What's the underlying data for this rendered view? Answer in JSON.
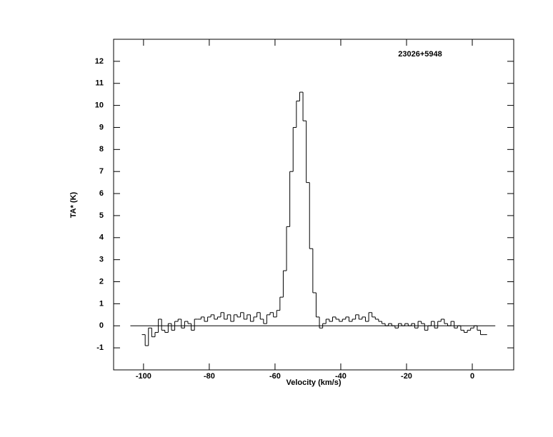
{
  "chart_data": {
    "type": "step",
    "title": "23026+5948",
    "x_label": "Velocity (km/s)",
    "y_label": "TA* (K)",
    "xlim": [
      -109.1,
      12.6
    ],
    "ylim": [
      -2,
      13
    ],
    "xticks": [
      -100,
      -80,
      -60,
      -40,
      -20,
      0
    ],
    "yticks": [
      -1,
      0,
      1,
      2,
      3,
      4,
      5,
      6,
      7,
      8,
      9,
      10,
      11,
      12
    ],
    "baseline": {
      "y": 0,
      "x": [
        -104,
        7
      ]
    },
    "color": "#000000",
    "x": [
      -100,
      -99,
      -98,
      -97,
      -96,
      -95,
      -94,
      -93,
      -92,
      -91,
      -90,
      -89,
      -88,
      -87,
      -86,
      -85,
      -84,
      -83,
      -82,
      -81,
      -80,
      -79,
      -78,
      -77,
      -76,
      -75,
      -74,
      -73,
      -72,
      -71,
      -70,
      -69,
      -68,
      -67,
      -66,
      -65,
      -64,
      -63,
      -62,
      -61,
      -60,
      -59,
      -58,
      -57,
      -56,
      -55,
      -54,
      -53,
      -52,
      -51,
      -50,
      -49,
      -48,
      -47,
      -46,
      -45,
      -44,
      -43,
      -42,
      -41,
      -40,
      -39,
      -38,
      -37,
      -36,
      -35,
      -34,
      -33,
      -32,
      -31,
      -30,
      -29,
      -28,
      -27,
      -26,
      -25,
      -24,
      -23,
      -22,
      -21,
      -20,
      -19,
      -18,
      -17,
      -16,
      -15,
      -14,
      -13,
      -12,
      -11,
      -10,
      -9,
      -8,
      -7,
      -6,
      -5,
      -4,
      -3,
      -2,
      -1,
      0,
      1,
      2,
      3,
      4
    ],
    "values": [
      -0.4,
      -0.9,
      -0.1,
      -0.5,
      -0.3,
      0.3,
      -0.2,
      -0.3,
      0.1,
      -0.2,
      0.2,
      0.3,
      -0.1,
      0.2,
      0.1,
      -0.2,
      0.3,
      0.3,
      0.4,
      0.2,
      0.4,
      0.5,
      0.3,
      0.4,
      0.6,
      0.3,
      0.5,
      0.2,
      0.5,
      0.4,
      0.6,
      0.3,
      0.5,
      0.2,
      0.4,
      0.6,
      0.3,
      0.1,
      0.5,
      0.6,
      0.4,
      0.7,
      1.3,
      2.5,
      4.5,
      7.0,
      9.0,
      10.2,
      10.6,
      9.3,
      6.5,
      3.5,
      1.5,
      0.4,
      -0.1,
      0.1,
      0.3,
      0.2,
      0.4,
      0.3,
      0.2,
      0.3,
      0.4,
      0.2,
      0.3,
      0.5,
      0.3,
      0.4,
      0.2,
      0.6,
      0.4,
      0.3,
      0.2,
      0.1,
      0.0,
      0.1,
      0.0,
      -0.1,
      0.1,
      0.0,
      0.1,
      0.0,
      0.1,
      -0.1,
      0.2,
      0.1,
      -0.2,
      0.0,
      0.2,
      -0.1,
      0.2,
      0.3,
      0.1,
      0.0,
      0.2,
      -0.1,
      0.0,
      -0.2,
      -0.3,
      -0.2,
      -0.1,
      0.0,
      -0.2,
      -0.4,
      -0.4
    ]
  }
}
